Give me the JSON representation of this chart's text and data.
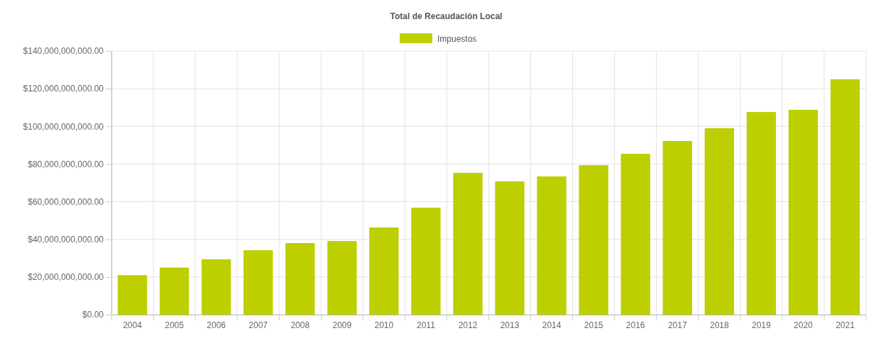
{
  "chart_data": {
    "type": "bar",
    "title": "Total de Recaudación Local",
    "categories": [
      "2004",
      "2005",
      "2006",
      "2007",
      "2008",
      "2009",
      "2010",
      "2011",
      "2012",
      "2013",
      "2014",
      "2015",
      "2016",
      "2017",
      "2018",
      "2019",
      "2020",
      "2021"
    ],
    "series": [
      {
        "name": "Impuestos",
        "color": "#bdcf00",
        "values": [
          21000000000,
          25000000000,
          29400000000,
          34200000000,
          38000000000,
          39100000000,
          46300000000,
          56800000000,
          75300000000,
          70800000000,
          73400000000,
          79400000000,
          85400000000,
          92200000000,
          99000000000,
          107600000000,
          108800000000,
          125000000000
        ]
      }
    ],
    "ylim": [
      0,
      140000000000
    ],
    "yticks": [
      {
        "value": 0,
        "label": "$0.00"
      },
      {
        "value": 20000000000,
        "label": "$20,000,000,000.00"
      },
      {
        "value": 40000000000,
        "label": "$40,000,000,000.00"
      },
      {
        "value": 60000000000,
        "label": "$60,000,000,000.00"
      },
      {
        "value": 80000000000,
        "label": "$80,000,000,000.00"
      },
      {
        "value": 100000000000,
        "label": "$100,000,000,000.00"
      },
      {
        "value": 120000000000,
        "label": "$120,000,000,000.00"
      },
      {
        "value": 140000000000,
        "label": "$140,000,000,000.00"
      }
    ],
    "grid": true,
    "legend": "top"
  }
}
